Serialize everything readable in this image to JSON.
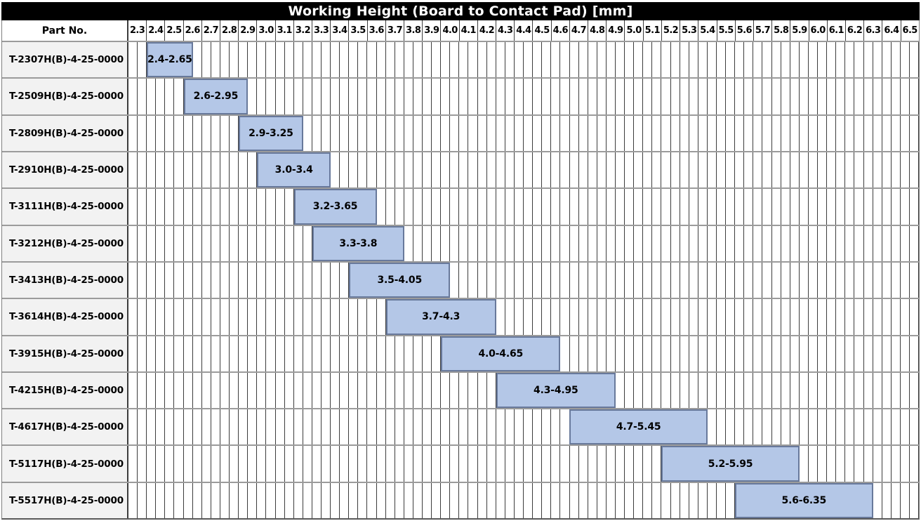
{
  "title": "Working Height (Board to Contact Pad) [mm]",
  "part_no_label": "Part No.",
  "colors": {
    "title_bg": "#000000",
    "title_text": "#ffffff",
    "bar_fill": "#b4c7e7",
    "bar_border": "#68799b",
    "part_cell_bg": "#f2f2f2",
    "grid_line": "#3c3c3c",
    "row_separator": "#9b9b9b"
  },
  "chart_data": {
    "type": "bar",
    "subtype": "horizontal-range-gantt",
    "title": "Working Height (Board to Contact Pad) [mm]",
    "unit": "mm",
    "legend": "none",
    "grid": "on",
    "axis": {
      "min": 2.3,
      "max": 6.6,
      "tick_step": 0.1,
      "sub_grid_step": 0.05,
      "tick_labels": [
        "2.3",
        "2.4",
        "2.5",
        "2.6",
        "2.7",
        "2.8",
        "2.9",
        "3.0",
        "3.1",
        "3.2",
        "3.3",
        "3.4",
        "3.5",
        "3.6",
        "3.7",
        "3.8",
        "3.9",
        "4.0",
        "4.1",
        "4.2",
        "4.3",
        "4.4",
        "4.5",
        "4.6",
        "4.7",
        "4.8",
        "4.9",
        "5.0",
        "5.1",
        "5.2",
        "5.3",
        "5.4",
        "5.5",
        "5.6",
        "5.7",
        "5.8",
        "5.9",
        "6.0",
        "6.1",
        "6.2",
        "6.3",
        "6.4",
        "6.5"
      ]
    },
    "rows": [
      {
        "part_no": "T-2307H(B)-4-25-0000",
        "range_label": "2.4-2.65",
        "start": 2.4,
        "end": 2.65
      },
      {
        "part_no": "T-2509H(B)-4-25-0000",
        "range_label": "2.6-2.95",
        "start": 2.6,
        "end": 2.95
      },
      {
        "part_no": "T-2809H(B)-4-25-0000",
        "range_label": "2.9-3.25",
        "start": 2.9,
        "end": 3.25
      },
      {
        "part_no": "T-2910H(B)-4-25-0000",
        "range_label": "3.0-3.4",
        "start": 3.0,
        "end": 3.4
      },
      {
        "part_no": "T-3111H(B)-4-25-0000",
        "range_label": "3.2-3.65",
        "start": 3.2,
        "end": 3.65
      },
      {
        "part_no": "T-3212H(B)-4-25-0000",
        "range_label": "3.3-3.8",
        "start": 3.3,
        "end": 3.8
      },
      {
        "part_no": "T-3413H(B)-4-25-0000",
        "range_label": "3.5-4.05",
        "start": 3.5,
        "end": 4.05
      },
      {
        "part_no": "T-3614H(B)-4-25-0000",
        "range_label": "3.7-4.3",
        "start": 3.7,
        "end": 4.3
      },
      {
        "part_no": "T-3915H(B)-4-25-0000",
        "range_label": "4.0-4.65",
        "start": 4.0,
        "end": 4.65
      },
      {
        "part_no": "T-4215H(B)-4-25-0000",
        "range_label": "4.3-4.95",
        "start": 4.3,
        "end": 4.95
      },
      {
        "part_no": "T-4617H(B)-4-25-0000",
        "range_label": "4.7-5.45",
        "start": 4.7,
        "end": 5.45
      },
      {
        "part_no": "T-5117H(B)-4-25-0000",
        "range_label": "5.2-5.95",
        "start": 5.2,
        "end": 5.95
      },
      {
        "part_no": "T-5517H(B)-4-25-0000",
        "range_label": "5.6-6.35",
        "start": 5.6,
        "end": 6.35
      }
    ]
  }
}
